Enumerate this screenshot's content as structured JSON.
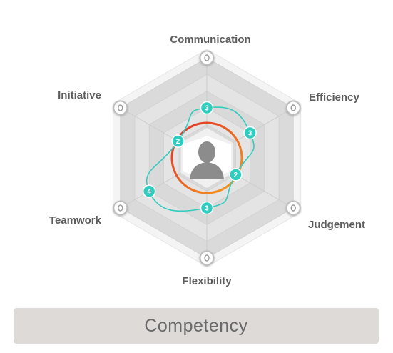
{
  "chart_data": {
    "type": "radar",
    "categories": [
      "Communication",
      "Efficiency",
      "Judgement",
      "Flexibility",
      "Teamwork",
      "Initiative"
    ],
    "values": [
      3,
      3,
      2,
      3,
      4,
      2
    ],
    "rmax": 6,
    "rings": 6,
    "colors": {
      "series_line": "#35cbbf",
      "series_point": "#2ecdc0",
      "ring_gradient_start": "#e12a2a",
      "ring_gradient_end": "#f4a11d"
    }
  },
  "footer": {
    "label": "Competency"
  }
}
